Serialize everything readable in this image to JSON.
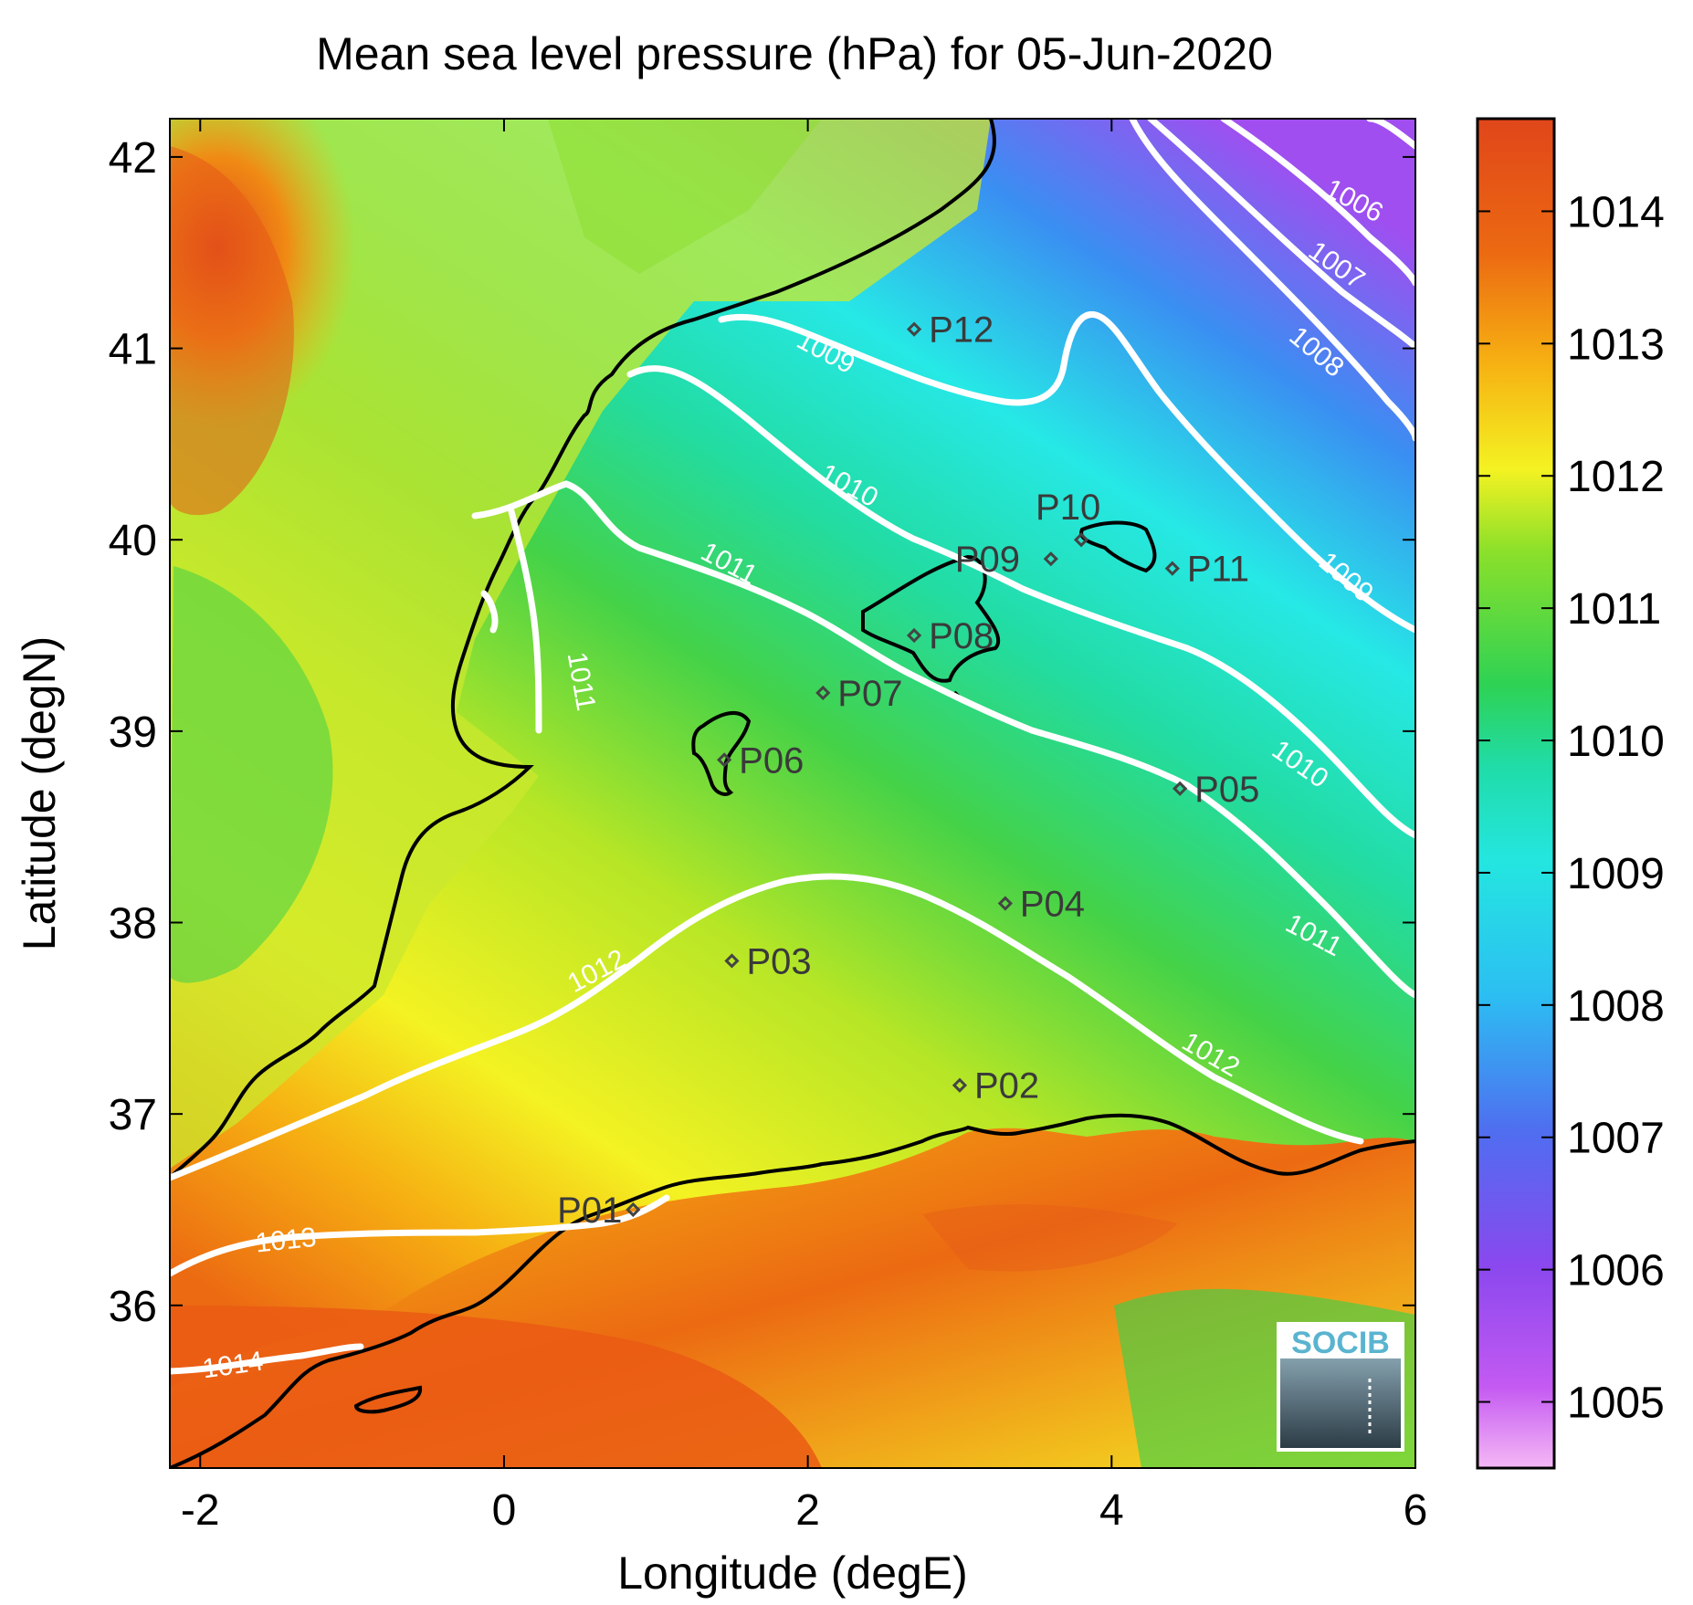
{
  "title": "Mean sea level pressure (hPa) for 05-Jun-2020",
  "chart_data": {
    "type": "heatmap",
    "title": "Mean sea level pressure (hPa) for 05-Jun-2020",
    "xlabel": "Longitude (degE)",
    "ylabel": "Latitude (degN)",
    "xlim": [
      -2.2,
      6.0
    ],
    "ylim": [
      35.15,
      42.2
    ],
    "xticks": [
      "-2",
      "0",
      "2",
      "4",
      "6"
    ],
    "yticks": [
      "36",
      "37",
      "38",
      "39",
      "40",
      "41",
      "42"
    ],
    "colorbar": {
      "range": [
        1004.5,
        1014.7
      ],
      "ticks": [
        "1005",
        "1006",
        "1007",
        "1008",
        "1009",
        "1010",
        "1011",
        "1012",
        "1013",
        "1014"
      ],
      "colors": [
        "#f5b8f5",
        "#b94ff0",
        "#7b45ee",
        "#3a90f2",
        "#28e8ec",
        "#20dca8",
        "#2ed254",
        "#8ce02a",
        "#f4f222",
        "#f6b012",
        "#ec6a12",
        "#e0461a"
      ]
    },
    "contour_labels": [
      "1006",
      "1007",
      "1008",
      "1009",
      "1009",
      "1010",
      "1010",
      "1011",
      "1011",
      "1011",
      "1012",
      "1012",
      "1013",
      "1014"
    ],
    "stations": [
      {
        "name": "P01",
        "lon": 0.85,
        "lat": 36.5
      },
      {
        "name": "P02",
        "lon": 3.0,
        "lat": 37.15
      },
      {
        "name": "P03",
        "lon": 1.5,
        "lat": 37.8
      },
      {
        "name": "P04",
        "lon": 3.3,
        "lat": 38.1
      },
      {
        "name": "P05",
        "lon": 4.45,
        "lat": 38.7
      },
      {
        "name": "P06",
        "lon": 1.45,
        "lat": 38.85
      },
      {
        "name": "P07",
        "lon": 2.1,
        "lat": 39.2
      },
      {
        "name": "P08",
        "lon": 2.7,
        "lat": 39.5
      },
      {
        "name": "P09",
        "lon": 3.6,
        "lat": 39.9
      },
      {
        "name": "P10",
        "lon": 3.8,
        "lat": 40.0
      },
      {
        "name": "P11",
        "lon": 4.4,
        "lat": 39.85
      },
      {
        "name": "P12",
        "lon": 2.7,
        "lat": 41.1
      }
    ]
  },
  "logo": {
    "text": "SOCIB"
  }
}
